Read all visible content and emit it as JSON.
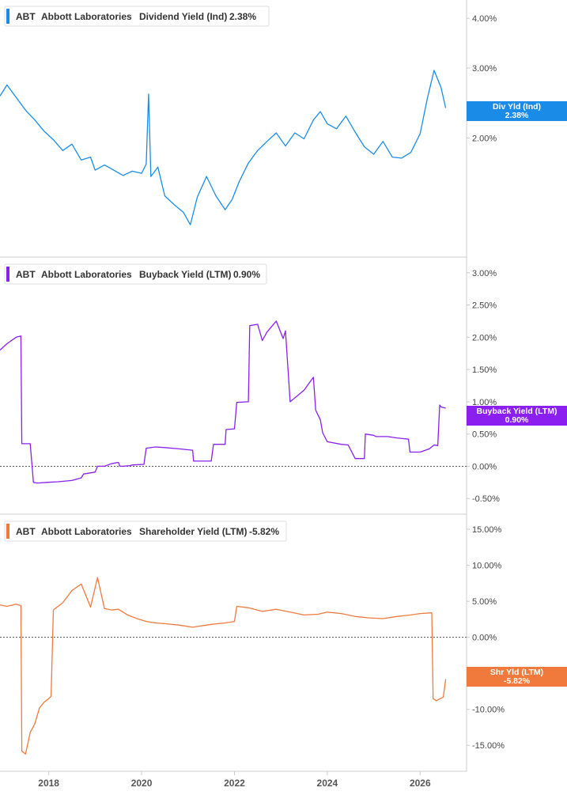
{
  "chart_data": [
    {
      "type": "line",
      "legend": {
        "ticker": "ABT",
        "company": "Abbott Laboratories",
        "metric": "Dividend Yield (Ind)",
        "value": "2.38%"
      },
      "badge": {
        "label": "Div Yld (Ind)",
        "value": "2.38%"
      },
      "color": "#1a8ce8",
      "y_scale": "log",
      "ylim": [
        1.05,
        4.25
      ],
      "y_ticks": [
        {
          "v": 4.0,
          "label": "4.00%"
        },
        {
          "v": 3.0,
          "label": "3.00%"
        },
        {
          "v": 2.0,
          "label": "2.00%"
        }
      ],
      "zero_line": false,
      "series": [
        {
          "x": [
            2016.95,
            2017.1,
            2017.3,
            2017.5,
            2017.7,
            2017.9,
            2018.1,
            2018.3,
            2018.5,
            2018.7,
            2018.9,
            2019.0,
            2019.2,
            2019.4,
            2019.6,
            2019.8,
            2020.0,
            2020.1,
            2020.15,
            2020.2,
            2020.35,
            2020.5,
            2020.7,
            2020.9,
            2021.05,
            2021.2,
            2021.4,
            2021.6,
            2021.8,
            2021.95,
            2022.1,
            2022.3,
            2022.5,
            2022.7,
            2022.9,
            2023.1,
            2023.3,
            2023.5,
            2023.7,
            2023.85,
            2024.0,
            2024.2,
            2024.4,
            2024.6,
            2024.8,
            2025.0,
            2025.2,
            2025.4,
            2025.6,
            2025.8,
            2026.0,
            2026.15,
            2026.3,
            2026.45,
            2026.55
          ],
          "y": [
            2.55,
            2.72,
            2.53,
            2.35,
            2.22,
            2.08,
            1.98,
            1.86,
            1.93,
            1.76,
            1.79,
            1.66,
            1.71,
            1.66,
            1.61,
            1.65,
            1.63,
            1.72,
            2.58,
            1.6,
            1.69,
            1.43,
            1.36,
            1.3,
            1.21,
            1.42,
            1.6,
            1.43,
            1.32,
            1.4,
            1.55,
            1.73,
            1.86,
            1.96,
            2.06,
            1.91,
            2.06,
            1.99,
            2.22,
            2.33,
            2.17,
            2.11,
            2.27,
            2.07,
            1.9,
            1.82,
            1.96,
            1.79,
            1.78,
            1.84,
            2.05,
            2.5,
            2.96,
            2.68,
            2.38
          ]
        }
      ]
    },
    {
      "type": "line",
      "legend": {
        "ticker": "ABT",
        "company": "Abbott Laboratories",
        "metric": "Buyback Yield (LTM)",
        "value": "0.90%"
      },
      "badge": {
        "label": "Buyback Yield (LTM)",
        "value": "0.90%"
      },
      "color": "#8a1ff0",
      "y_scale": "linear",
      "ylim": [
        -0.62,
        3.12
      ],
      "y_ticks": [
        {
          "v": 3.0,
          "label": "3.00%"
        },
        {
          "v": 2.5,
          "label": "2.50%"
        },
        {
          "v": 2.0,
          "label": "2.00%"
        },
        {
          "v": 1.5,
          "label": "1.50%"
        },
        {
          "v": 1.0,
          "label": "1.00%"
        },
        {
          "v": 0.5,
          "label": "0.50%"
        },
        {
          "v": 0.0,
          "label": "0.00%"
        },
        {
          "v": -0.5,
          "label": "-0.50%"
        }
      ],
      "zero_line": true,
      "series": [
        {
          "x": [
            2016.95,
            2017.1,
            2017.3,
            2017.4,
            2017.42,
            2017.6,
            2017.67,
            2017.75,
            2017.77,
            2017.95,
            2018.2,
            2018.5,
            2018.7,
            2018.75,
            2019.0,
            2019.05,
            2019.2,
            2019.35,
            2019.5,
            2019.53,
            2019.6,
            2019.75,
            2019.8,
            2020.05,
            2020.1,
            2020.3,
            2020.5,
            2020.8,
            2021.1,
            2021.12,
            2021.5,
            2021.55,
            2021.8,
            2021.82,
            2022.0,
            2022.05,
            2022.3,
            2022.33,
            2022.5,
            2022.6,
            2022.7,
            2022.9,
            2023.05,
            2023.1,
            2023.2,
            2023.4,
            2023.5,
            2023.7,
            2023.75,
            2023.85,
            2023.9,
            2024.0,
            2024.3,
            2024.45,
            2024.6,
            2024.8,
            2024.82,
            2025.0,
            2025.05,
            2025.3,
            2025.5,
            2025.75,
            2025.78,
            2026.0,
            2026.2,
            2026.3,
            2026.38,
            2026.42,
            2026.45,
            2026.55
          ],
          "y": [
            1.8,
            1.9,
            2.0,
            2.02,
            0.35,
            0.35,
            -0.25,
            -0.26,
            -0.26,
            -0.25,
            -0.24,
            -0.22,
            -0.18,
            -0.12,
            -0.09,
            0.0,
            0.0,
            0.04,
            0.06,
            0.0,
            0.0,
            0.01,
            0.02,
            0.03,
            0.28,
            0.3,
            0.29,
            0.27,
            0.25,
            0.08,
            0.08,
            0.34,
            0.34,
            0.57,
            0.58,
            0.99,
            1.0,
            2.18,
            2.2,
            1.95,
            2.08,
            2.25,
            1.98,
            2.1,
            1.0,
            1.12,
            1.18,
            1.38,
            0.87,
            0.72,
            0.52,
            0.38,
            0.34,
            0.33,
            0.12,
            0.12,
            0.5,
            0.48,
            0.46,
            0.46,
            0.44,
            0.42,
            0.22,
            0.22,
            0.27,
            0.33,
            0.32,
            0.95,
            0.92,
            0.9
          ]
        }
      ]
    },
    {
      "type": "line",
      "legend": {
        "ticker": "ABT",
        "company": "Abbott Laboratories",
        "metric": "Shareholder Yield (LTM)",
        "value": "-5.82%"
      },
      "badge": {
        "label": "Shr Yld (LTM)",
        "value": "-5.82%"
      },
      "color": "#f07a3c",
      "y_scale": "linear",
      "ylim": [
        -17.5,
        16.0
      ],
      "y_ticks": [
        {
          "v": 15,
          "label": "15.00%"
        },
        {
          "v": 10,
          "label": "10.00%"
        },
        {
          "v": 5,
          "label": "5.00%"
        },
        {
          "v": 0,
          "label": "0.00%"
        },
        {
          "v": -5,
          "label": "-5.00%"
        },
        {
          "v": -10,
          "label": "-10.00%"
        },
        {
          "v": -15,
          "label": "-15.00%"
        }
      ],
      "zero_line": true,
      "series": [
        {
          "x": [
            2016.95,
            2017.1,
            2017.3,
            2017.4,
            2017.42,
            2017.5,
            2017.6,
            2017.7,
            2017.8,
            2017.9,
            2018.0,
            2018.05,
            2018.1,
            2018.3,
            2018.5,
            2018.7,
            2018.9,
            2019.05,
            2019.2,
            2019.35,
            2019.5,
            2019.7,
            2019.9,
            2020.1,
            2020.3,
            2020.5,
            2020.8,
            2021.1,
            2021.5,
            2021.8,
            2022.0,
            2022.05,
            2022.3,
            2022.6,
            2022.9,
            2023.2,
            2023.5,
            2023.8,
            2024.0,
            2024.3,
            2024.6,
            2024.9,
            2025.2,
            2025.5,
            2025.8,
            2026.0,
            2026.25,
            2026.28,
            2026.35,
            2026.5,
            2026.55
          ],
          "y": [
            4.5,
            4.3,
            4.6,
            4.4,
            -15.8,
            -16.2,
            -13.2,
            -12.0,
            -9.8,
            -9.0,
            -8.5,
            -8.2,
            3.8,
            4.8,
            6.5,
            7.4,
            4.2,
            8.3,
            4.0,
            3.8,
            3.9,
            3.1,
            2.6,
            2.2,
            2.0,
            1.9,
            1.7,
            1.4,
            1.8,
            2.0,
            2.2,
            4.3,
            4.1,
            3.6,
            3.9,
            3.5,
            3.1,
            3.2,
            3.5,
            3.3,
            2.9,
            2.7,
            2.6,
            2.9,
            3.1,
            3.3,
            3.4,
            -8.5,
            -8.8,
            -8.3,
            -5.8
          ]
        }
      ]
    }
  ],
  "x_axis": {
    "range": [
      2016.95,
      2027.0
    ],
    "ticks": [
      {
        "v": 2018,
        "label": "2018"
      },
      {
        "v": 2020,
        "label": "2020"
      },
      {
        "v": 2022,
        "label": "2022"
      },
      {
        "v": 2024,
        "label": "2024"
      },
      {
        "v": 2026,
        "label": "2026"
      }
    ]
  },
  "colors": {
    "axis": "#cccccc",
    "zero_line": "#555555",
    "text": "#333333"
  }
}
